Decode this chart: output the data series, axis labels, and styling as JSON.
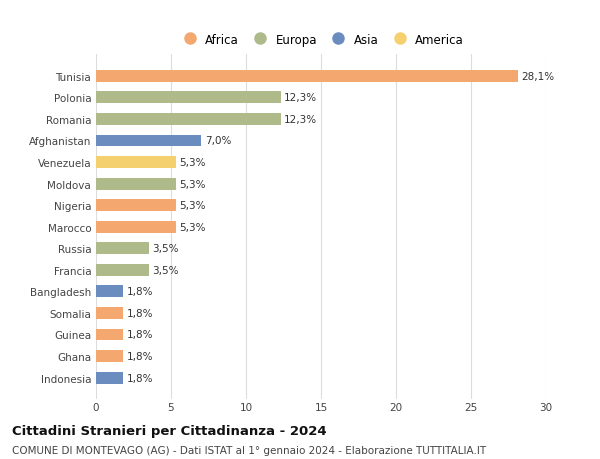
{
  "countries": [
    "Tunisia",
    "Polonia",
    "Romania",
    "Afghanistan",
    "Venezuela",
    "Moldova",
    "Nigeria",
    "Marocco",
    "Russia",
    "Francia",
    "Bangladesh",
    "Somalia",
    "Guinea",
    "Ghana",
    "Indonesia"
  ],
  "values": [
    28.1,
    12.3,
    12.3,
    7.0,
    5.3,
    5.3,
    5.3,
    5.3,
    3.5,
    3.5,
    1.8,
    1.8,
    1.8,
    1.8,
    1.8
  ],
  "labels": [
    "28,1%",
    "12,3%",
    "12,3%",
    "7,0%",
    "5,3%",
    "5,3%",
    "5,3%",
    "5,3%",
    "3,5%",
    "3,5%",
    "1,8%",
    "1,8%",
    "1,8%",
    "1,8%",
    "1,8%"
  ],
  "continents": [
    "Africa",
    "Europa",
    "Europa",
    "Asia",
    "America",
    "Europa",
    "Africa",
    "Africa",
    "Europa",
    "Europa",
    "Asia",
    "Africa",
    "Africa",
    "Africa",
    "Asia"
  ],
  "colors": {
    "Africa": "#F4A870",
    "Europa": "#AEBA8A",
    "Asia": "#6B8CBE",
    "America": "#F5D06E"
  },
  "legend_order": [
    "Africa",
    "Europa",
    "Asia",
    "America"
  ],
  "xlim": [
    0,
    30
  ],
  "xticks": [
    0,
    5,
    10,
    15,
    20,
    25,
    30
  ],
  "title": "Cittadini Stranieri per Cittadinanza - 2024",
  "subtitle": "COMUNE DI MONTEVAGO (AG) - Dati ISTAT al 1° gennaio 2024 - Elaborazione TUTTITALIA.IT",
  "background_color": "#ffffff",
  "bar_height": 0.55,
  "grid_color": "#dddddd",
  "label_fontsize": 7.5,
  "tick_fontsize": 7.5,
  "title_fontsize": 9.5,
  "subtitle_fontsize": 7.5
}
